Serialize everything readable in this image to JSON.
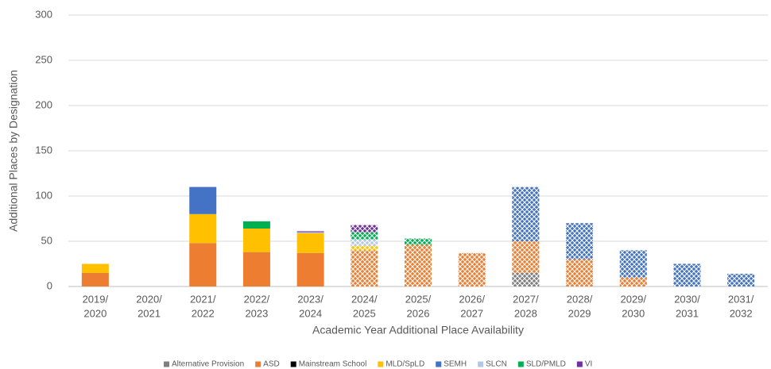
{
  "chart_data": {
    "type": "stacked_bar",
    "x_label": "Academic Year Additional Place Availability",
    "y_label": "Additional Places by Designation",
    "categories": [
      [
        "2019/",
        "2020"
      ],
      [
        "2020/",
        "2021"
      ],
      [
        "2021/",
        "2022"
      ],
      [
        "2022/",
        "2023"
      ],
      [
        "2023/",
        "2024"
      ],
      [
        "2024/",
        "2025"
      ],
      [
        "2025/",
        "2026"
      ],
      [
        "2026/",
        "2027"
      ],
      [
        "2027/",
        "2028"
      ],
      [
        "2028/",
        "2029"
      ],
      [
        "2029/",
        "2030"
      ],
      [
        "2030/",
        "2031"
      ],
      [
        "2031/",
        "2032"
      ]
    ],
    "patterned": [
      false,
      false,
      false,
      false,
      false,
      true,
      true,
      true,
      true,
      true,
      true,
      true,
      true
    ],
    "series": [
      {
        "name": "Alternative Provision",
        "color": "#7f7f7f",
        "values": [
          0,
          0,
          0,
          0,
          0,
          0,
          0,
          0,
          15,
          0,
          0,
          0,
          0
        ]
      },
      {
        "name": "ASD",
        "color": "#ed7d31",
        "values": [
          15,
          0,
          48,
          38,
          37,
          40,
          46,
          37,
          35,
          30,
          10,
          0,
          0
        ]
      },
      {
        "name": "Mainstream School",
        "color": "#000000",
        "values": [
          0,
          0,
          0,
          0,
          0,
          0,
          0,
          0,
          0,
          0,
          0,
          0,
          0
        ]
      },
      {
        "name": "MLD/SpLD",
        "color": "#ffc000",
        "values": [
          10,
          0,
          32,
          26,
          22,
          5,
          0,
          0,
          0,
          0,
          0,
          0,
          0
        ]
      },
      {
        "name": "SEMH",
        "color": "#4472c4",
        "values": [
          0,
          0,
          30,
          0,
          0,
          0,
          0,
          0,
          60,
          40,
          30,
          25,
          14
        ]
      },
      {
        "name": "SLCN",
        "color": "#b4c7e7",
        "values": [
          0,
          0,
          0,
          0,
          1,
          7,
          0,
          0,
          0,
          0,
          0,
          0,
          0
        ]
      },
      {
        "name": "SLD/PMLD",
        "color": "#00b050",
        "values": [
          0,
          0,
          0,
          8,
          0,
          8,
          7,
          0,
          0,
          0,
          0,
          0,
          0
        ]
      },
      {
        "name": "VI",
        "color": "#7030a0",
        "values": [
          0,
          0,
          0,
          0,
          1,
          8,
          0,
          0,
          0,
          0,
          0,
          0,
          0
        ]
      }
    ],
    "ylim": [
      0,
      300
    ],
    "yticks": [
      0,
      50,
      100,
      150,
      200,
      250,
      300
    ],
    "grid": true,
    "legend": "bottom"
  }
}
